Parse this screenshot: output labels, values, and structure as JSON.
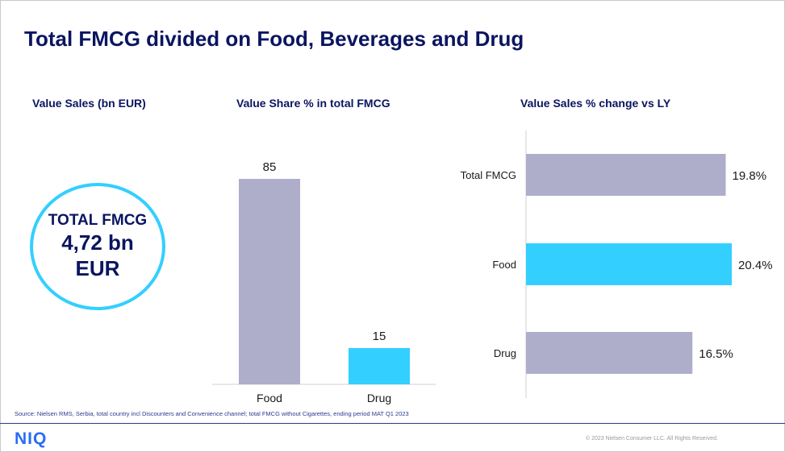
{
  "title": "Total FMCG divided on Food, Beverages and Drug",
  "subheads": {
    "value_sales": "Value Sales (bn EUR)",
    "value_share": "Value Share % in total FMCG",
    "change": "Value Sales % change vs LY"
  },
  "kpi": {
    "label": "TOTAL FMCG",
    "value": "4,72 bn",
    "unit": "EUR"
  },
  "colors": {
    "title": "#0a1560",
    "accent": "#33cfff",
    "bar_grey": "#aeaecb",
    "logo": "#2a6cf6"
  },
  "chart_data": [
    {
      "type": "bar",
      "title": "Value Share % in total FMCG",
      "categories": [
        "Food",
        "Drug"
      ],
      "values": [
        85,
        15
      ],
      "data_labels": [
        "85",
        "15"
      ],
      "ylim": [
        0,
        100
      ],
      "grid": false
    },
    {
      "type": "bar",
      "orientation": "horizontal",
      "title": "Value Sales % change vs LY",
      "categories": [
        "Total FMCG",
        "Food",
        "Drug"
      ],
      "values": [
        19.8,
        20.4,
        16.5
      ],
      "data_labels": [
        "19.8%",
        "20.4%",
        "16.5%"
      ],
      "xlim": [
        0,
        25
      ],
      "grid": false
    }
  ],
  "footer": {
    "source": "Source: Nielsen RMS, Serbia, total country incl Discounters and Convenience channel; total FMCG without Cigarettes, ending period MAT Q1 2023",
    "logo": "NIQ",
    "copyright": "© 2023 Nielsen Consumer LLC. All Rights Reserved."
  }
}
